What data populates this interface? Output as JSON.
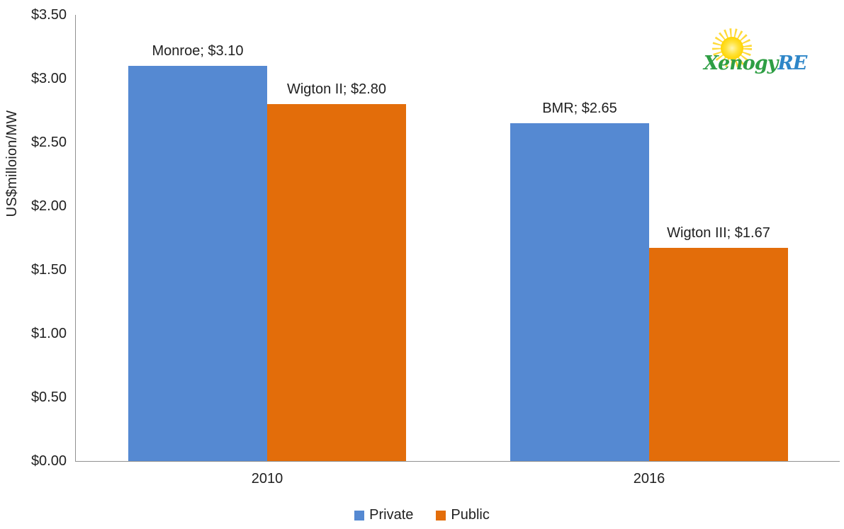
{
  "chart_data": {
    "type": "bar",
    "categories": [
      "2010",
      "2016"
    ],
    "series": [
      {
        "name": "Private",
        "color": "#5589D2",
        "values": [
          3.1,
          2.65
        ],
        "point_labels": [
          "Monroe; $3.10",
          "BMR; $2.65"
        ]
      },
      {
        "name": "Public",
        "color": "#E36D0A",
        "values": [
          2.8,
          1.67
        ],
        "point_labels": [
          "Wigton II; $2.80",
          "Wigton III; $1.67"
        ]
      }
    ],
    "title": "",
    "xlabel": "",
    "ylabel": "US$milloion/MW",
    "ylim": [
      0,
      3.5
    ],
    "ytick_step": 0.5,
    "yticks": [
      "$3.50",
      "$3.00",
      "$2.50",
      "$2.00",
      "$1.50",
      "$1.00",
      "$0.50",
      "$0.00"
    ],
    "grid": false,
    "legend_position": "bottom",
    "axis_color": "#909090",
    "text_color": "#212121"
  },
  "legend": {
    "items": [
      {
        "label": "Private",
        "color": "#5589D2"
      },
      {
        "label": "Public",
        "color": "#E36D0A"
      }
    ]
  },
  "logo": {
    "icon": "sun-icon",
    "text_primary": "Xenogy",
    "text_secondary": "RE",
    "primary_color": "#2E9E44",
    "secondary_color": "#2E86C8",
    "sun_color": "#FFD400"
  }
}
